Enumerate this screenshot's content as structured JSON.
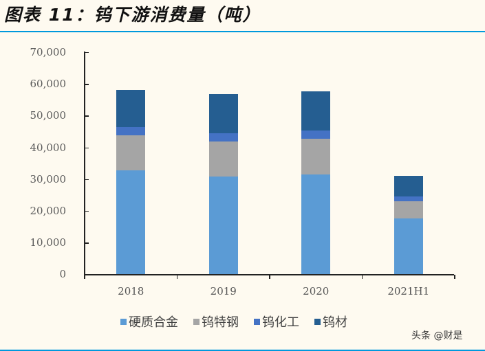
{
  "header": {
    "title_prefix": "图表",
    "title_number": "11",
    "title_text": "：钨下游消费量（吨）"
  },
  "colors": {
    "background": "#fefaf0",
    "rule": "#0099dd",
    "硬质合金": "#5b9bd5",
    "钨特钢": "#a5a5a5",
    "钨化工": "#4472c4",
    "钨材": "#255e91"
  },
  "chart_data": {
    "type": "bar",
    "stacked": true,
    "title": "图表 11：钨下游消费量（吨）",
    "xlabel": "",
    "ylabel": "",
    "ylim": [
      0,
      70000
    ],
    "yticks": [
      "0",
      "10,000",
      "20,000",
      "30,000",
      "40,000",
      "50,000",
      "60,000",
      "70,000"
    ],
    "categories": [
      "2018",
      "2019",
      "2020",
      "2021H1"
    ],
    "series": [
      {
        "name": "硬质合金",
        "color": "#5b9bd5",
        "values": [
          32800,
          30900,
          31400,
          17500
        ]
      },
      {
        "name": "钨特钢",
        "color": "#a5a5a5",
        "values": [
          11000,
          11000,
          11300,
          5600
        ]
      },
      {
        "name": "钨化工",
        "color": "#4472c4",
        "values": [
          2500,
          2500,
          2600,
          1400
        ]
      },
      {
        "name": "钨材",
        "color": "#255e91",
        "values": [
          11700,
          12300,
          12300,
          6600
        ]
      }
    ],
    "totals": [
      58000,
      56700,
      57600,
      31100
    ],
    "grid": false,
    "legend_position": "bottom"
  },
  "legend": {
    "items": [
      "硬质合金",
      "钨特钢",
      "钨化工",
      "钨材"
    ]
  },
  "watermark": {
    "text": "头条 @财是"
  }
}
